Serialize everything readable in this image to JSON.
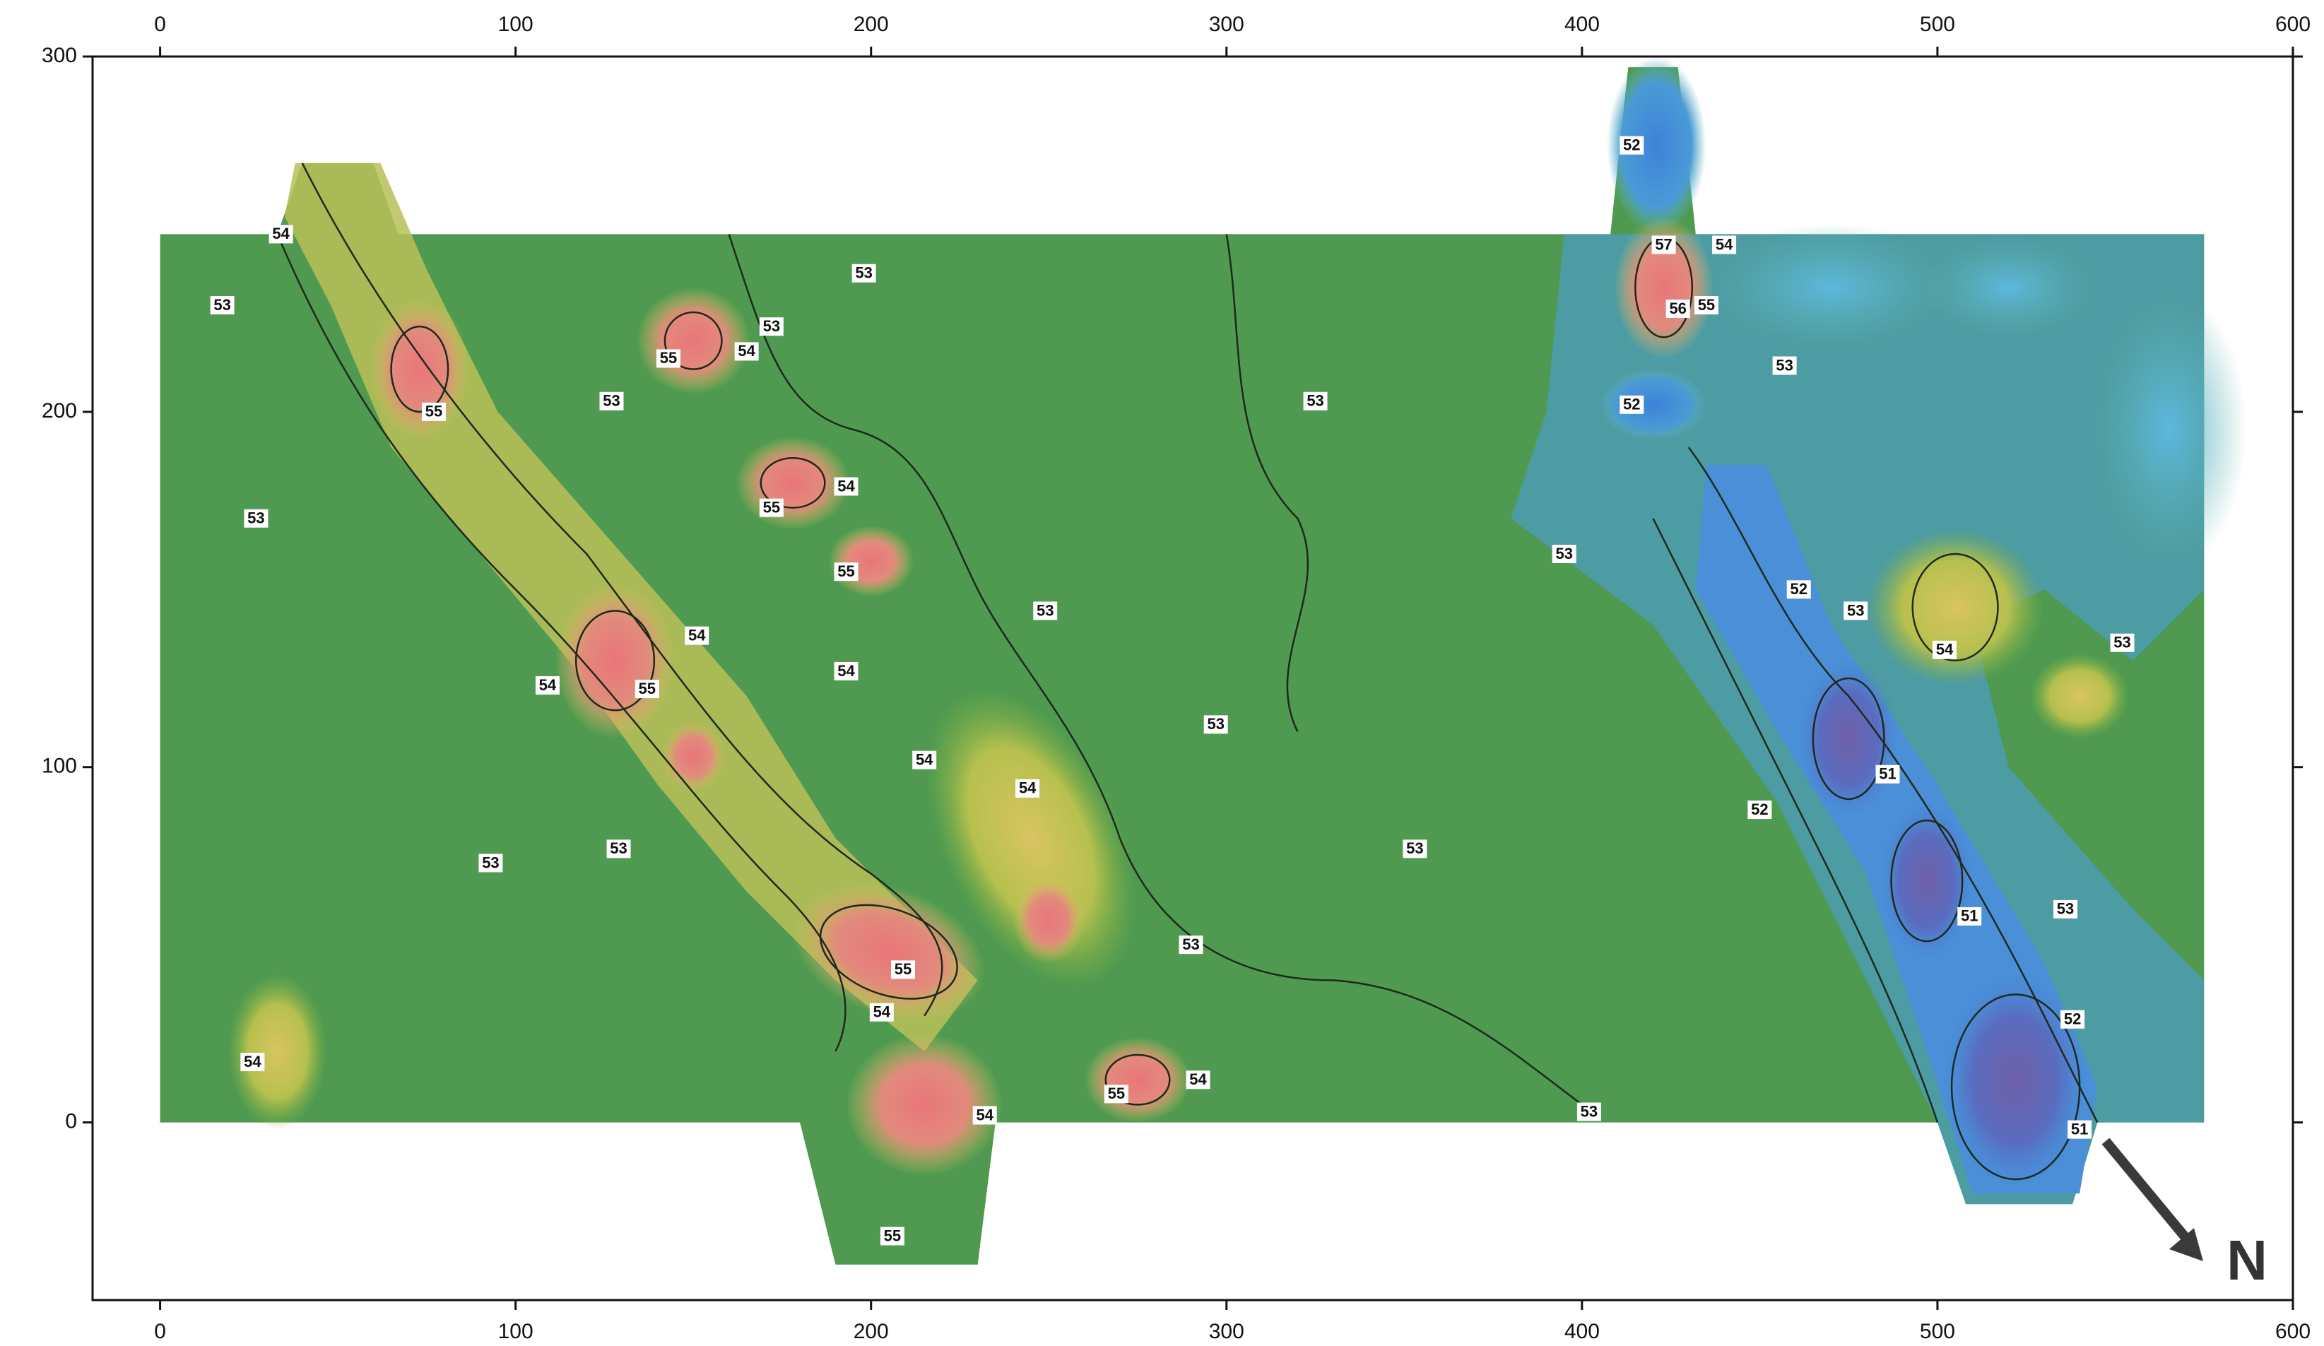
{
  "map": {
    "xlim": [
      -19,
      600
    ],
    "xticks": [
      0,
      100,
      200,
      300,
      400,
      500,
      600
    ],
    "ylim": [
      -50,
      300
    ],
    "yticks": [
      0,
      100,
      200,
      300
    ],
    "contour_labels": [
      {
        "value": 54,
        "x": 34,
        "y": 250
      },
      {
        "value": 53,
        "x": 17.5,
        "y": 230
      },
      {
        "value": 55,
        "x": 77,
        "y": 200
      },
      {
        "value": 53,
        "x": 27,
        "y": 170
      },
      {
        "value": 55,
        "x": 143,
        "y": 215
      },
      {
        "value": 54,
        "x": 165,
        "y": 217
      },
      {
        "value": 53,
        "x": 172,
        "y": 224
      },
      {
        "value": 53,
        "x": 198,
        "y": 239
      },
      {
        "value": 53,
        "x": 127,
        "y": 203
      },
      {
        "value": 55,
        "x": 172,
        "y": 173
      },
      {
        "value": 54,
        "x": 193,
        "y": 179
      },
      {
        "value": 55,
        "x": 193,
        "y": 155
      },
      {
        "value": 54,
        "x": 151,
        "y": 137
      },
      {
        "value": 54,
        "x": 109,
        "y": 123
      },
      {
        "value": 55,
        "x": 137,
        "y": 122
      },
      {
        "value": 54,
        "x": 193,
        "y": 127
      },
      {
        "value": 53,
        "x": 249,
        "y": 144
      },
      {
        "value": 53,
        "x": 325,
        "y": 203
      },
      {
        "value": 53,
        "x": 297,
        "y": 112
      },
      {
        "value": 54,
        "x": 215,
        "y": 102
      },
      {
        "value": 54,
        "x": 244,
        "y": 94
      },
      {
        "value": 53,
        "x": 129,
        "y": 77
      },
      {
        "value": 53,
        "x": 93,
        "y": 73
      },
      {
        "value": 55,
        "x": 209,
        "y": 43
      },
      {
        "value": 54,
        "x": 203,
        "y": 31
      },
      {
        "value": 54,
        "x": 26,
        "y": 17
      },
      {
        "value": 54,
        "x": 232,
        "y": 2
      },
      {
        "value": 55,
        "x": 269,
        "y": 8
      },
      {
        "value": 54,
        "x": 292,
        "y": 12
      },
      {
        "value": 53,
        "x": 290,
        "y": 50
      },
      {
        "value": 53,
        "x": 353,
        "y": 77
      },
      {
        "value": 53,
        "x": 402,
        "y": 3
      },
      {
        "value": 55,
        "x": 206,
        "y": -32
      },
      {
        "value": 52,
        "x": 414,
        "y": 275
      },
      {
        "value": 57,
        "x": 423,
        "y": 247
      },
      {
        "value": 54,
        "x": 440,
        "y": 247
      },
      {
        "value": 56,
        "x": 427,
        "y": 229
      },
      {
        "value": 55,
        "x": 435,
        "y": 230
      },
      {
        "value": 53,
        "x": 457,
        "y": 213
      },
      {
        "value": 52,
        "x": 414,
        "y": 202
      },
      {
        "value": 53,
        "x": 395,
        "y": 160
      },
      {
        "value": 52,
        "x": 461,
        "y": 150
      },
      {
        "value": 53,
        "x": 477,
        "y": 144
      },
      {
        "value": 54,
        "x": 502,
        "y": 133
      },
      {
        "value": 53,
        "x": 552,
        "y": 135
      },
      {
        "value": 51,
        "x": 486,
        "y": 98
      },
      {
        "value": 52,
        "x": 450,
        "y": 88
      },
      {
        "value": 51,
        "x": 509,
        "y": 58
      },
      {
        "value": 53,
        "x": 536,
        "y": 60
      },
      {
        "value": 52,
        "x": 538,
        "y": 29
      },
      {
        "value": 51,
        "x": 540,
        "y": -2
      }
    ],
    "north_label": "N"
  }
}
